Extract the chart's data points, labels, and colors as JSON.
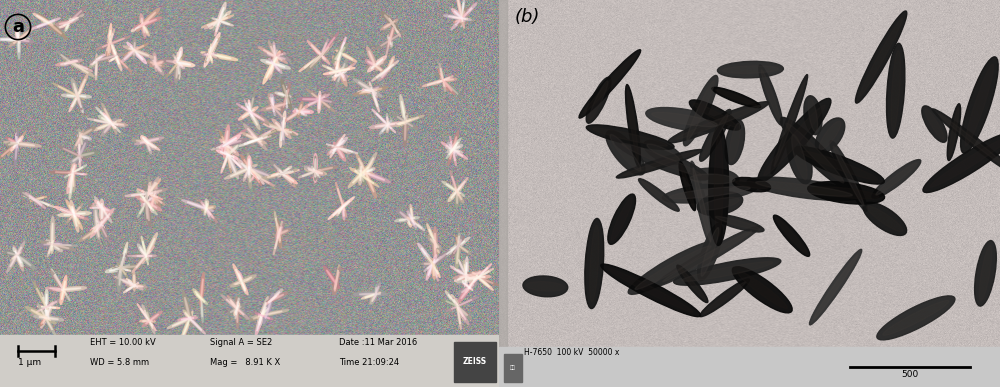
{
  "fig_width": 10.0,
  "fig_height": 3.87,
  "panel_a_label": "a",
  "panel_b_label": "(b)",
  "sem_bg_mean": 0.58,
  "sem_bg_std": 0.07,
  "sem_needle_count": 600,
  "sem_footer_color": "#d0cdc8",
  "tem_bg_mean": 0.77,
  "tem_bg_std": 0.02,
  "tem_spindle_count": 60,
  "tem_footer_color": "#c8c8c8",
  "zeiss_bg": "#444444",
  "sem_bar_text": "1 μm",
  "sem_meta1a": "EHT = 10.00 kV",
  "sem_meta1b": "Signal A = SE2",
  "sem_meta1c": "Date :11 Mar 2016",
  "sem_meta2a": "WD = 5.8 mm",
  "sem_meta2b": "Mag =   8.91 K X",
  "sem_meta2c": "Time 21:09:24",
  "tem_meta": "H-7650  100 kV  50000 x",
  "tem_scale_label": "500"
}
